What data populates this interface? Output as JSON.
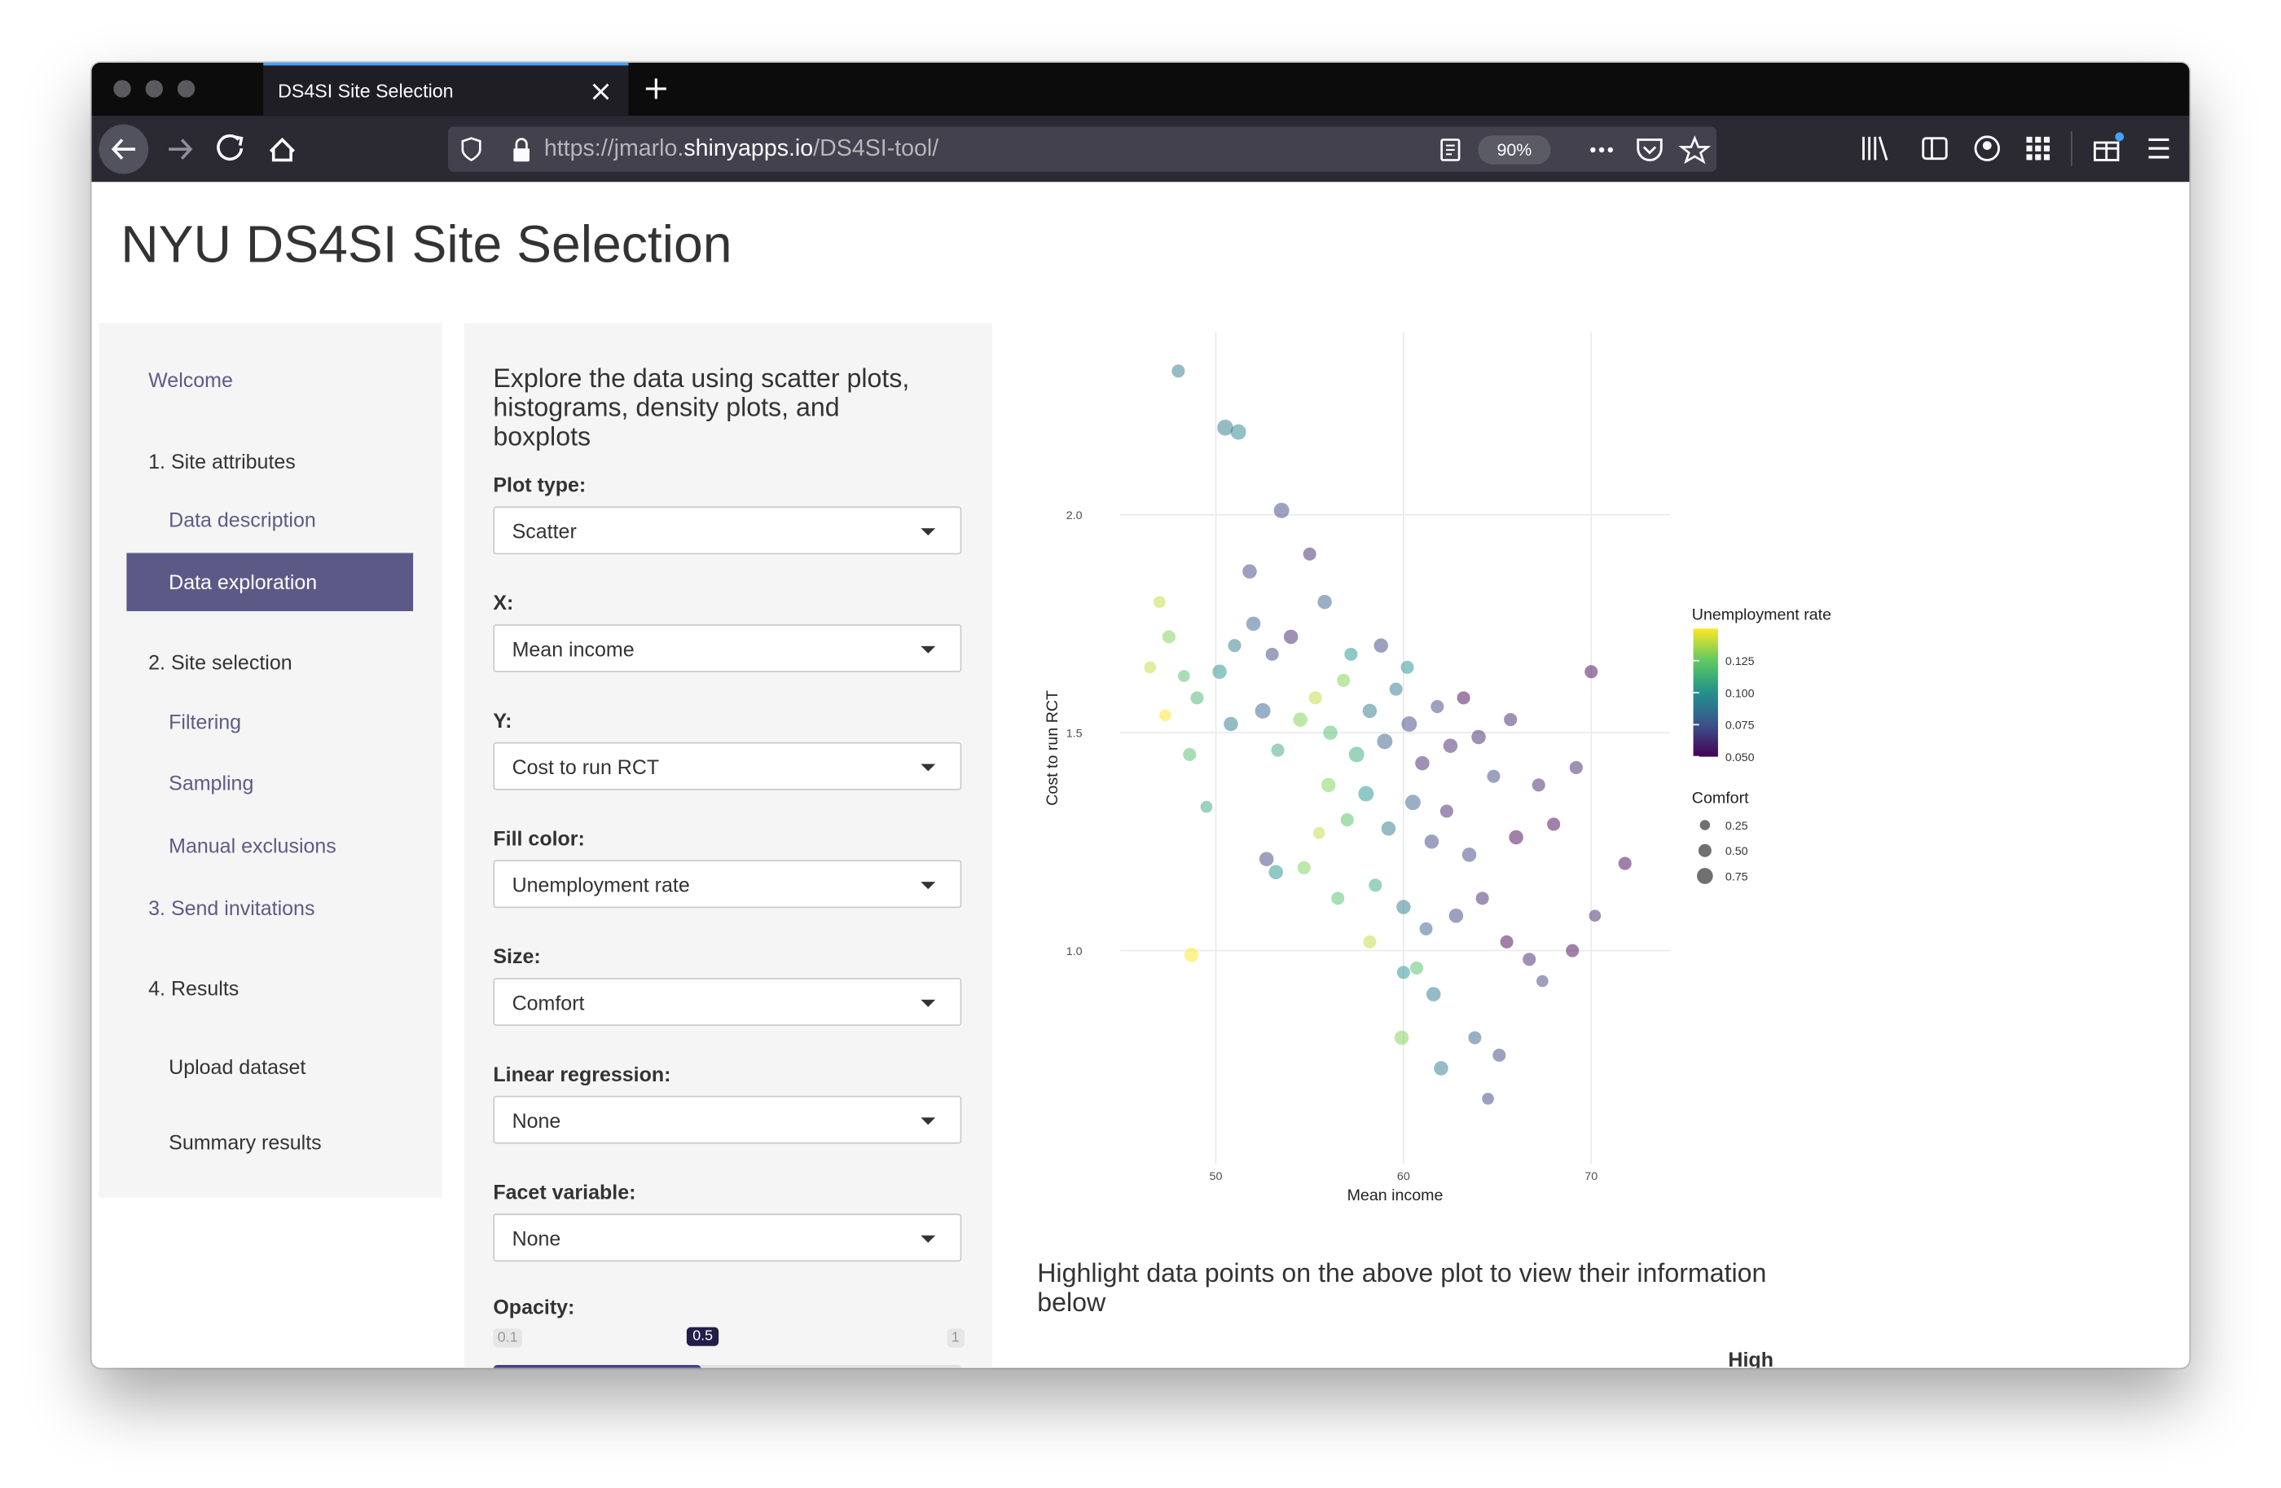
{
  "browser": {
    "tab_title": "DS4SI Site Selection",
    "url_prefix": "https://jmarlo.",
    "url_domain": "shinyapps.io",
    "url_path": "/DS4SI-tool/",
    "zoom": "90%"
  },
  "page": {
    "title": "NYU DS4SI Site Selection"
  },
  "sidebar": {
    "items": [
      "Welcome",
      "1. Site attributes",
      "Data description",
      "Data exploration",
      "2. Site selection",
      "Filtering",
      "Sampling",
      "Manual exclusions",
      "3. Send invitations",
      "4. Results",
      "Upload dataset",
      "Summary results"
    ]
  },
  "panel": {
    "heading": "Explore the data using scatter plots, histograms, density plots, and boxplots",
    "controls": [
      {
        "label": "Plot type:",
        "value": "Scatter"
      },
      {
        "label": "X:",
        "value": "Mean income"
      },
      {
        "label": "Y:",
        "value": "Cost to run RCT"
      },
      {
        "label": "Fill color:",
        "value": "Unemployment rate"
      },
      {
        "label": "Size:",
        "value": "Comfort"
      },
      {
        "label": "Linear regression:",
        "value": "None"
      },
      {
        "label": "Facet variable:",
        "value": "None"
      }
    ],
    "slider": {
      "label": "Opacity:",
      "min": 0.1,
      "value": 0.5,
      "max": 1
    }
  },
  "chart_data": {
    "type": "scatter",
    "x_label": "Mean income",
    "y_label": "Cost to run RCT",
    "xlim": [
      44.9,
      74.2
    ],
    "ylim": [
      0.51,
      2.42
    ],
    "xticks": [
      50,
      60,
      70
    ],
    "yticks": [
      {
        "value": 1.0,
        "label": "1.0"
      },
      1.5,
      {
        "value": 2.0,
        "label": "2.0"
      }
    ],
    "grid": true,
    "color_legend_title": "Unemployment rate",
    "color_lim": [
      0.05,
      0.15
    ],
    "color_ticks": [
      {
        "value": 0.05,
        "label": "0.050"
      },
      0.075,
      {
        "value": 0.1,
        "label": "0.100"
      },
      0.125
    ],
    "size_legend_title": "Comfort",
    "size_ticks": [
      0.25,
      {
        "value": 0.5,
        "label": "0.50"
      },
      0.75
    ],
    "series": [
      {
        "x": [
          48,
          51.8,
          50.5,
          51.2,
          53.5,
          55,
          47,
          47.5,
          48.3,
          49,
          50.2,
          51,
          52,
          53,
          54,
          46.5,
          47.3,
          48.6,
          49.5,
          50.8,
          52.5,
          53.3,
          54.5,
          55.3,
          56.1,
          56.8,
          57.5,
          58.2,
          59,
          59.6,
          60.3,
          61,
          61.8,
          62.5,
          63.2,
          64,
          64.8,
          65.7,
          56,
          57,
          58,
          59.2,
          60.5,
          61.5,
          62.3,
          63.5,
          55.5,
          54.7,
          53.2,
          56.5,
          58.5,
          60,
          61.2,
          62.8,
          64.2,
          65.5,
          66.7,
          67.4,
          69,
          70.2,
          70,
          71.8,
          60,
          61.6,
          59.9,
          62,
          63.8,
          65.1,
          64.5,
          48.7,
          52.7,
          60.7,
          58.2,
          66,
          67.2,
          68,
          69.2,
          55.8,
          57.2,
          58.8,
          60.2
        ],
        "values": [
          2.33,
          1.87,
          2.2,
          2.19,
          2.01,
          1.91,
          1.8,
          1.72,
          1.63,
          1.58,
          1.64,
          1.7,
          1.75,
          1.68,
          1.72,
          1.65,
          1.54,
          1.45,
          1.33,
          1.52,
          1.55,
          1.46,
          1.53,
          1.58,
          1.5,
          1.62,
          1.45,
          1.55,
          1.48,
          1.6,
          1.52,
          1.43,
          1.56,
          1.47,
          1.58,
          1.49,
          1.4,
          1.53,
          1.38,
          1.3,
          1.36,
          1.28,
          1.34,
          1.25,
          1.32,
          1.22,
          1.27,
          1.19,
          1.18,
          1.12,
          1.15,
          1.1,
          1.05,
          1.08,
          1.12,
          1.02,
          0.98,
          0.93,
          1.0,
          1.08,
          1.64,
          1.2,
          0.95,
          0.9,
          0.8,
          0.73,
          0.8,
          0.76,
          0.66,
          0.99,
          1.21,
          0.96,
          1.02,
          1.26,
          1.38,
          1.29,
          1.42,
          1.8,
          1.68,
          1.7,
          1.65
        ],
        "color_values": [
          0.09,
          0.07,
          0.09,
          0.095,
          0.07,
          0.06,
          0.14,
          0.13,
          0.12,
          0.115,
          0.1,
          0.09,
          0.08,
          0.07,
          0.06,
          0.14,
          0.15,
          0.12,
          0.11,
          0.09,
          0.08,
          0.11,
          0.13,
          0.14,
          0.12,
          0.13,
          0.11,
          0.09,
          0.08,
          0.09,
          0.07,
          0.06,
          0.07,
          0.06,
          0.05,
          0.06,
          0.07,
          0.06,
          0.13,
          0.12,
          0.1,
          0.09,
          0.08,
          0.07,
          0.06,
          0.07,
          0.14,
          0.13,
          0.1,
          0.12,
          0.11,
          0.09,
          0.08,
          0.07,
          0.06,
          0.05,
          0.06,
          0.07,
          0.05,
          0.06,
          0.05,
          0.05,
          0.1,
          0.09,
          0.13,
          0.09,
          0.08,
          0.07,
          0.07,
          0.15,
          0.07,
          0.12,
          0.14,
          0.05,
          0.06,
          0.05,
          0.06,
          0.08,
          0.1,
          0.07,
          0.1
        ],
        "size_values": [
          0.5,
          0.6,
          0.75,
          0.7,
          0.7,
          0.5,
          0.4,
          0.5,
          0.4,
          0.5,
          0.6,
          0.5,
          0.6,
          0.5,
          0.6,
          0.4,
          0.4,
          0.5,
          0.4,
          0.6,
          0.7,
          0.5,
          0.6,
          0.5,
          0.6,
          0.5,
          0.7,
          0.6,
          0.7,
          0.5,
          0.7,
          0.6,
          0.5,
          0.6,
          0.5,
          0.6,
          0.5,
          0.5,
          0.6,
          0.5,
          0.7,
          0.6,
          0.7,
          0.6,
          0.5,
          0.6,
          0.4,
          0.5,
          0.6,
          0.5,
          0.5,
          0.6,
          0.5,
          0.6,
          0.5,
          0.5,
          0.5,
          0.4,
          0.5,
          0.4,
          0.5,
          0.5,
          0.5,
          0.6,
          0.6,
          0.6,
          0.5,
          0.5,
          0.4,
          0.6,
          0.6,
          0.5,
          0.5,
          0.6,
          0.5,
          0.5,
          0.5,
          0.6,
          0.5,
          0.6,
          0.5
        ]
      }
    ]
  },
  "highlight": {
    "text": "Highlight data points on the above plot to view their information below",
    "partial_header": "High"
  }
}
